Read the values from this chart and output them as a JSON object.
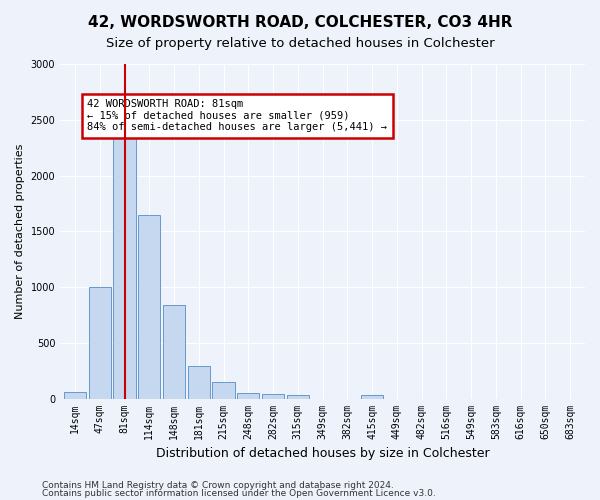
{
  "title": "42, WORDSWORTH ROAD, COLCHESTER, CO3 4HR",
  "subtitle": "Size of property relative to detached houses in Colchester",
  "xlabel": "Distribution of detached houses by size in Colchester",
  "ylabel": "Number of detached properties",
  "categories": [
    "14sqm",
    "47sqm",
    "81sqm",
    "114sqm",
    "148sqm",
    "181sqm",
    "215sqm",
    "248sqm",
    "282sqm",
    "315sqm",
    "349sqm",
    "382sqm",
    "415sqm",
    "449sqm",
    "482sqm",
    "516sqm",
    "549sqm",
    "583sqm",
    "616sqm",
    "650sqm",
    "683sqm"
  ],
  "bar_values": [
    55,
    1000,
    2470,
    1650,
    840,
    295,
    150,
    50,
    40,
    30,
    0,
    0,
    30,
    0,
    0,
    0,
    0,
    0,
    0,
    0,
    0
  ],
  "bar_color": "#c5d8f0",
  "bar_edge_color": "#6699cc",
  "red_line_index": 2,
  "red_line_color": "#cc0000",
  "annotation_text": "42 WORDSWORTH ROAD: 81sqm\n← 15% of detached houses are smaller (959)\n84% of semi-detached houses are larger (5,441) →",
  "annotation_box_color": "#ffffff",
  "annotation_box_edge": "#cc0000",
  "ylim": [
    0,
    3000
  ],
  "yticks": [
    0,
    500,
    1000,
    1500,
    2000,
    2500,
    3000
  ],
  "footer_line1": "Contains HM Land Registry data © Crown copyright and database right 2024.",
  "footer_line2": "Contains public sector information licensed under the Open Government Licence v3.0.",
  "background_color": "#eef2fb",
  "title_fontsize": 11,
  "subtitle_fontsize": 9.5,
  "tick_fontsize": 7,
  "ylabel_fontsize": 8,
  "xlabel_fontsize": 9
}
